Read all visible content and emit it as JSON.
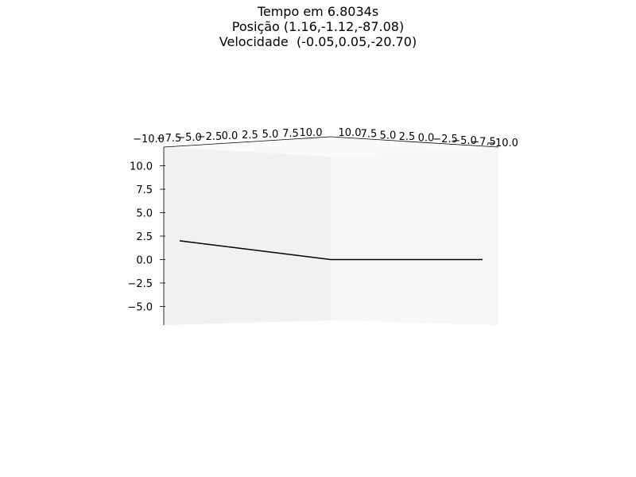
{
  "header": {
    "line1": "Tempo em 6.8034s",
    "line2": "Posição (1.16,-1.12,-87.08)",
    "line3": "Velocidade  (-0.05,0.05,-20.70)"
  },
  "chart_data": {
    "type": "line",
    "projection": "3d",
    "title": "Tempo em 6.8034s\nPosição (1.16,-1.12,-87.08)\nVelocidade  (-0.05,0.05,-20.70)",
    "x_ticks": [
      "−10.0",
      "−7.5",
      "−5.0",
      "−2.5",
      "0.0",
      "2.5",
      "5.0",
      "7.5",
      "10.0"
    ],
    "y_ticks": [
      "10.0",
      "7.5",
      "5.0",
      "2.5",
      "0.0",
      "−2.5",
      "−5.0",
      "−7.5",
      "−10.0"
    ],
    "z_ticks": [
      "10.0",
      "7.5",
      "5.0",
      "2.5",
      "0.0",
      "−2.5",
      "−5.0"
    ],
    "z_tick_values": [
      10,
      7.5,
      5,
      2.5,
      0,
      -2.5,
      -5
    ],
    "zlim": [
      -7,
      12
    ],
    "grid": false,
    "series": [
      {
        "color": "#000000",
        "points": [
          {
            "x": -10,
            "y": 10,
            "z": 2
          },
          {
            "x": 10,
            "y": 10,
            "z": 0
          },
          {
            "x": 10,
            "y": -10,
            "z": 0
          }
        ]
      }
    ]
  }
}
